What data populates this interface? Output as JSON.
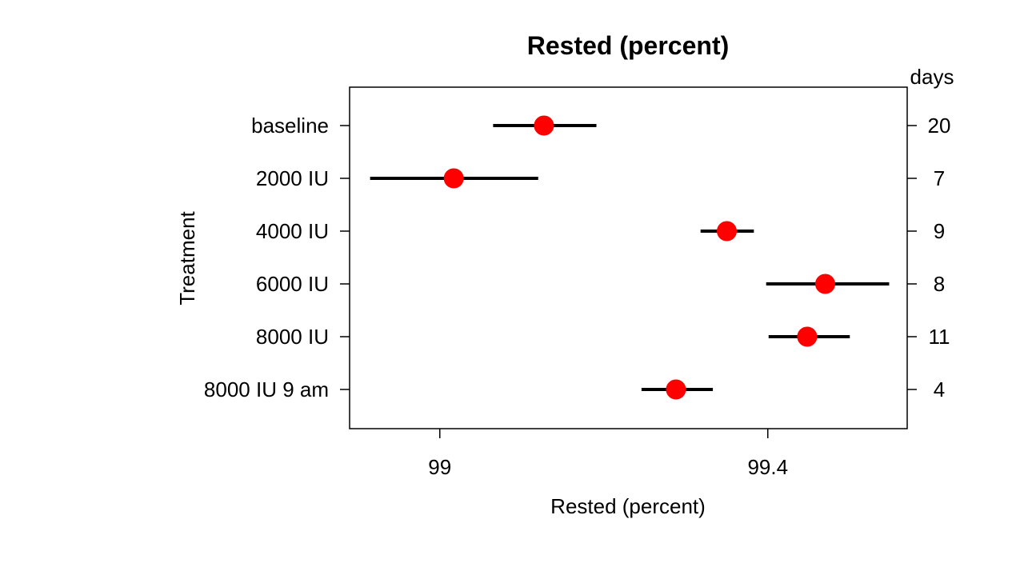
{
  "chart_data": {
    "type": "scatter",
    "title": "Rested (percent)",
    "xlabel": "Rested (percent)",
    "ylabel": "Treatment",
    "right_axis_title": "days",
    "xlim": [
      98.89,
      99.57
    ],
    "x_ticks": [
      {
        "value": 99.0,
        "label": "99"
      },
      {
        "value": 99.4,
        "label": "99.4"
      }
    ],
    "categories": [
      "baseline",
      "2000 IU",
      "4000 IU",
      "6000 IU",
      "8000 IU",
      "8000 IU 9 am"
    ],
    "series": [
      {
        "estimate": [
          99.127,
          99.017,
          99.35,
          99.47,
          99.448,
          99.288
        ],
        "lower": [
          99.065,
          98.915,
          99.318,
          99.398,
          99.401,
          99.246
        ],
        "upper": [
          99.191,
          99.12,
          99.383,
          99.548,
          99.5,
          99.333
        ]
      }
    ],
    "days": [
      "20",
      "7",
      "9",
      "8",
      "11",
      "4"
    ],
    "point_color": "#ff0000",
    "interval_color": "#000000",
    "grid": false,
    "legend": "none"
  }
}
